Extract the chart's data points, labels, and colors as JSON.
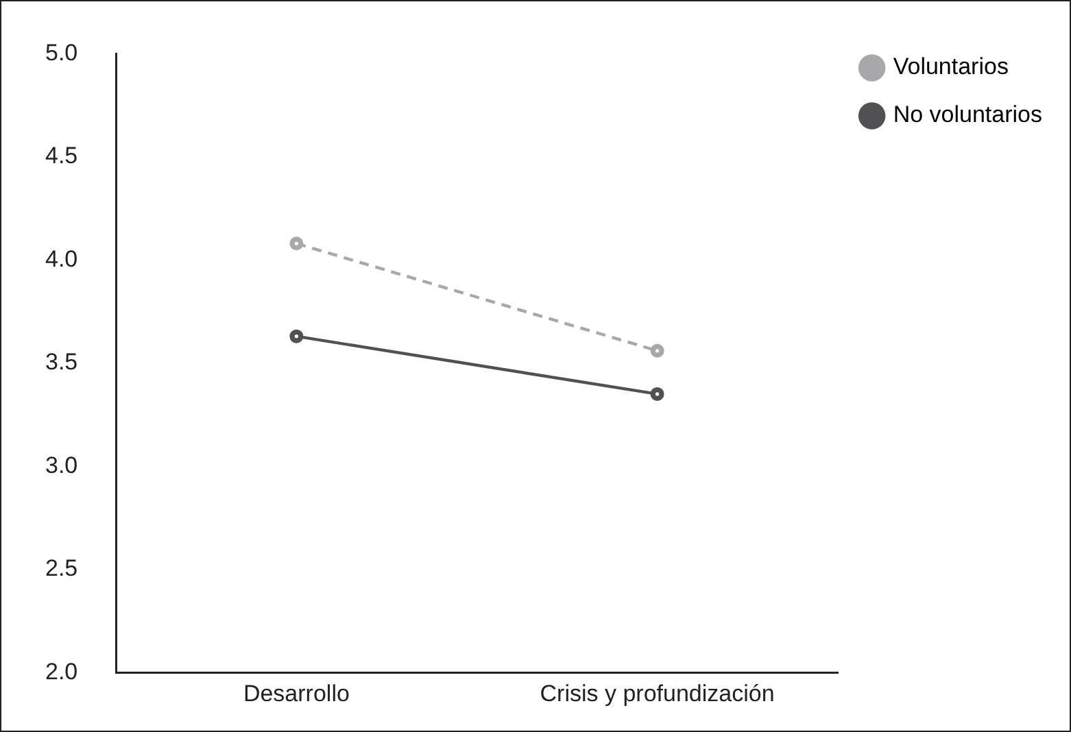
{
  "chart_data": {
    "type": "line",
    "categories": [
      "Desarrollo",
      "Crisis y profundización"
    ],
    "series": [
      {
        "name": "Voluntarios",
        "color": "#a8a8aa",
        "values": [
          4.08,
          3.56
        ],
        "line_style": "dashed"
      },
      {
        "name": "No voluntarios",
        "color": "#515154",
        "values": [
          3.63,
          3.35
        ],
        "line_style": "solid"
      }
    ],
    "ylim": [
      2.0,
      5.0
    ],
    "yticks": [
      {
        "value": 2,
        "label": "2.0"
      },
      {
        "value": 2.5,
        "label": "2.5"
      },
      {
        "value": 3,
        "label": "3.0"
      },
      {
        "value": 3.5,
        "label": "3.5"
      },
      {
        "value": 4,
        "label": "4.0"
      },
      {
        "value": 4.5,
        "label": "4.5"
      },
      {
        "value": 5,
        "label": "5.0"
      }
    ],
    "legend": "top right",
    "marker": "circle",
    "grid": false
  }
}
